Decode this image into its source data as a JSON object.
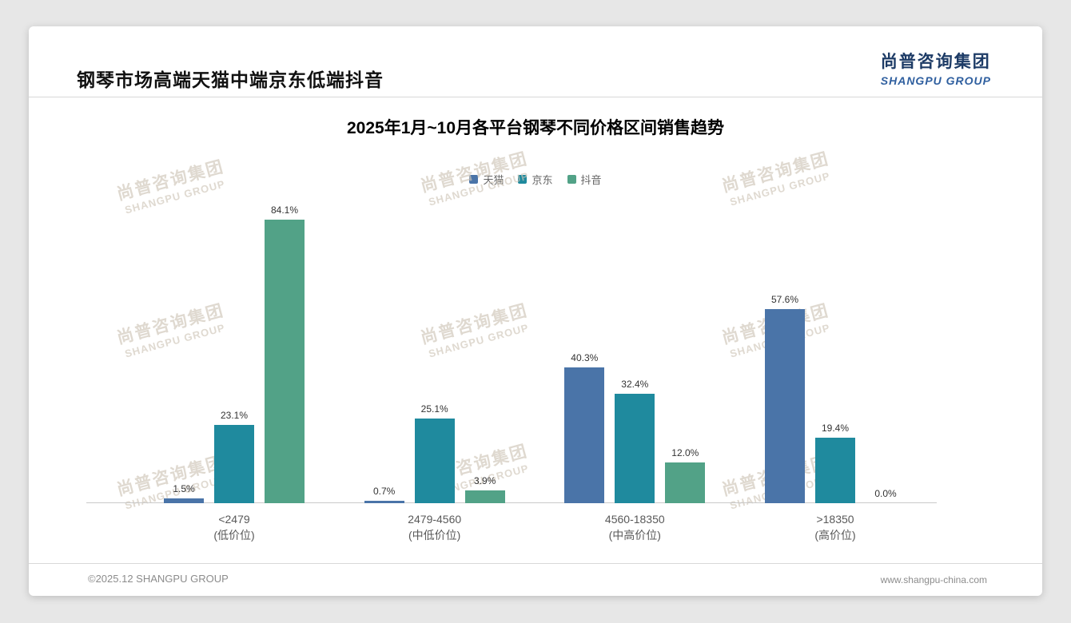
{
  "header": {
    "title": "钢琴市场高端天猫中端京东低端抖音",
    "logo": {
      "cn": "尚普咨询集团",
      "en": "SHANGPU GROUP"
    }
  },
  "watermark": {
    "cn": "尚普咨询集团",
    "en": "SHANGPU GROUP"
  },
  "footer": {
    "left": "©2025.12 SHANGPU GROUP",
    "right": "www.shangpu-china.com"
  },
  "chart_data": {
    "type": "bar",
    "title": "2025年1月~10月各平台钢琴不同价格区间销售趋势",
    "categories": [
      {
        "label": "<2479",
        "sub": "(低价位)"
      },
      {
        "label": "2479-4560",
        "sub": "(中低价位)"
      },
      {
        "label": "4560-18350",
        "sub": "(中高价位)"
      },
      {
        "label": ">18350",
        "sub": "(高价位)"
      }
    ],
    "series": [
      {
        "name": "天猫",
        "color": "#4a74a8",
        "values": [
          1.5,
          0.7,
          40.3,
          57.6
        ]
      },
      {
        "name": "京东",
        "color": "#1f8a9e",
        "values": [
          23.1,
          25.1,
          32.4,
          19.4
        ]
      },
      {
        "name": "抖音",
        "color": "#52a287",
        "values": [
          84.1,
          3.9,
          12.0,
          0.0
        ]
      }
    ],
    "value_suffix": "%",
    "ylim": [
      0,
      90
    ],
    "grid": false,
    "legend_position": "top"
  }
}
